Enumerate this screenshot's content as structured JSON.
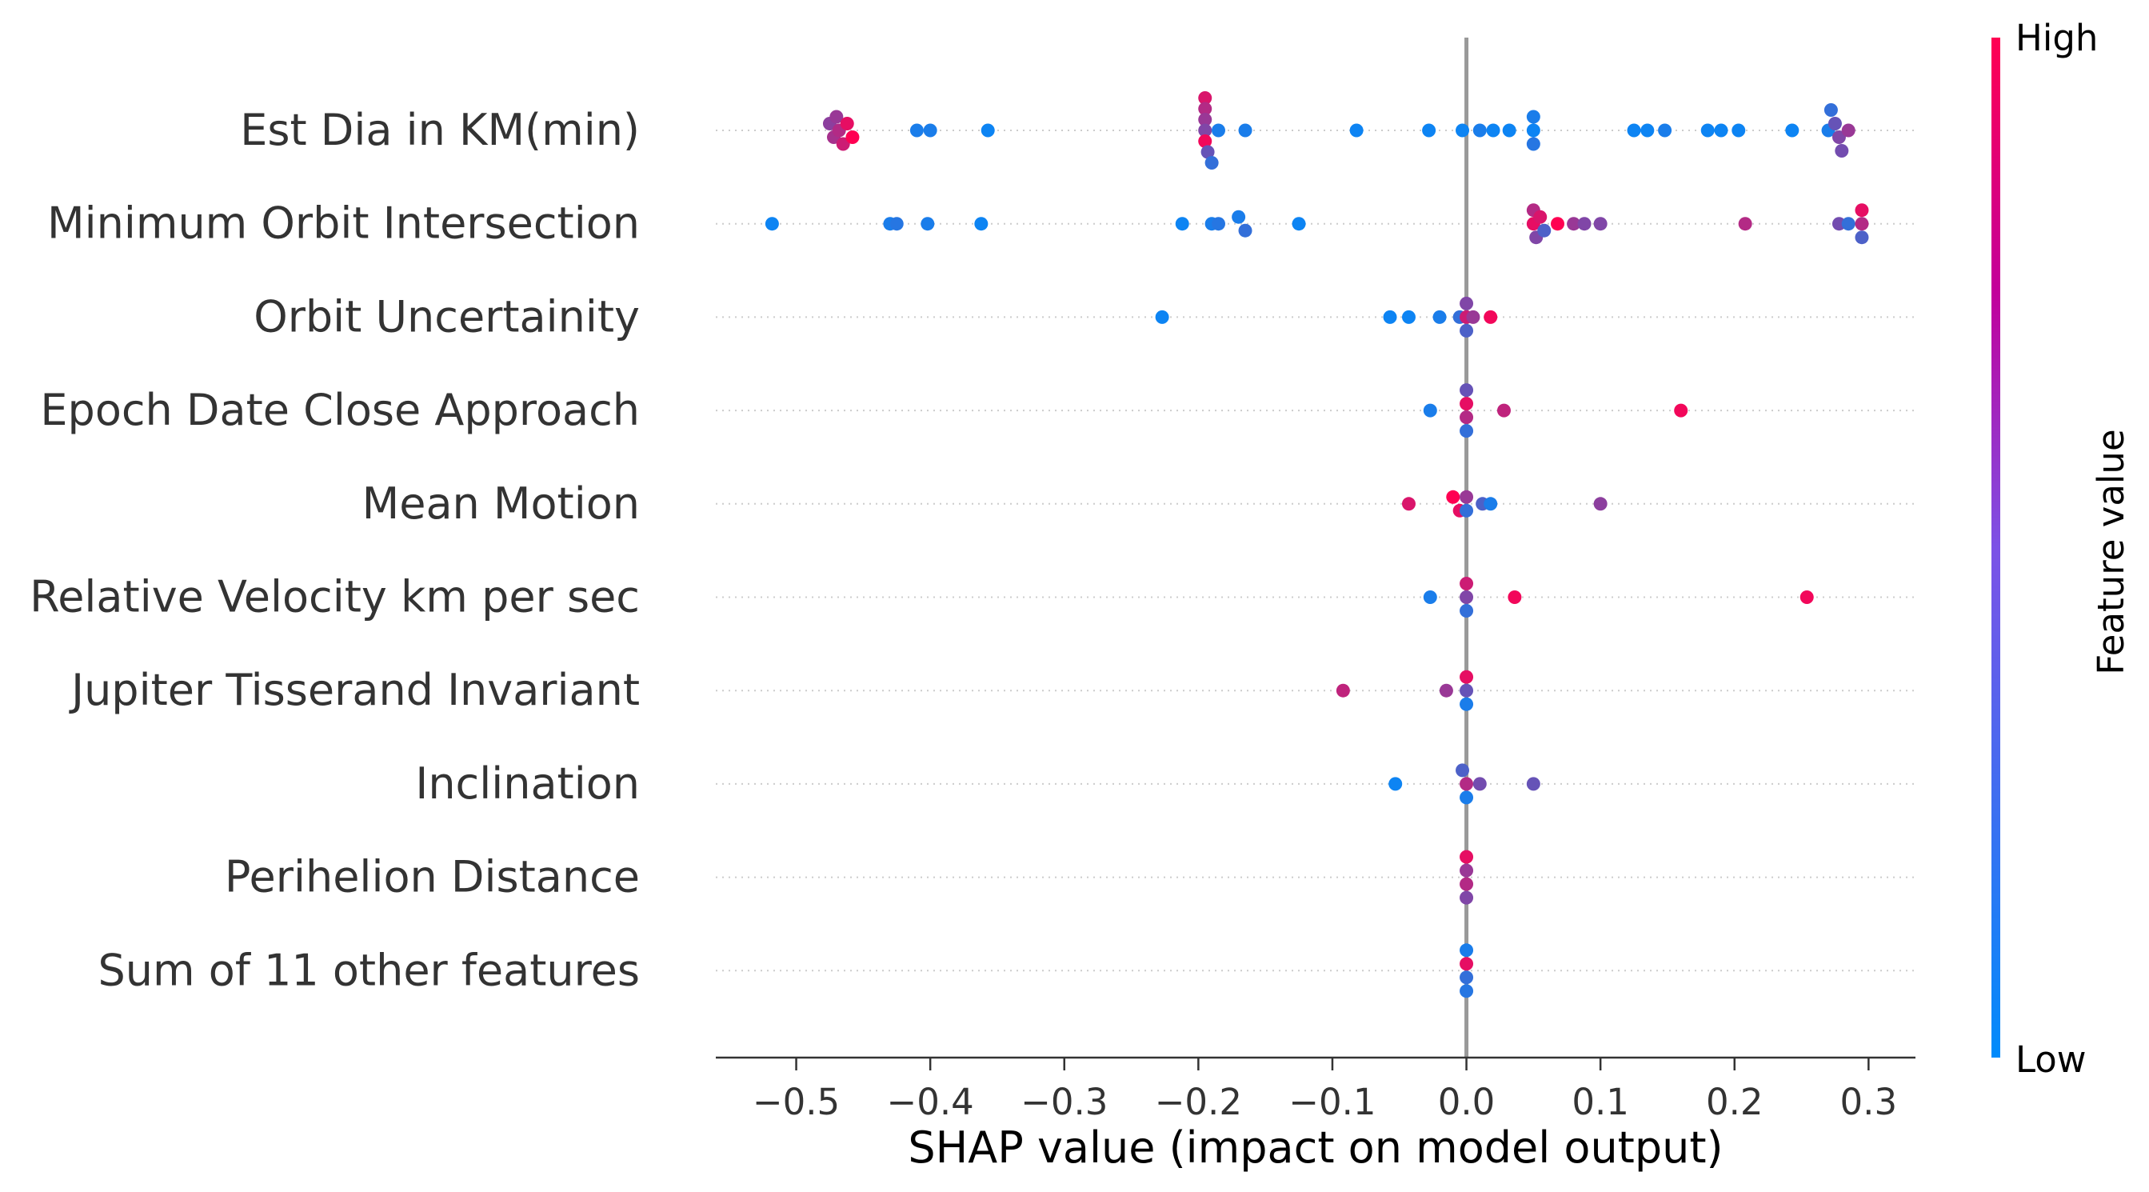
{
  "chart_data": {
    "type": "scatter",
    "subtype": "shap-beeswarm",
    "xlabel": "SHAP value (impact on model output)",
    "xlim": [
      -0.56,
      0.335
    ],
    "xticks": [
      -0.5,
      -0.4,
      -0.3,
      -0.2,
      -0.1,
      0.0,
      0.1,
      0.2,
      0.3
    ],
    "xtick_labels": [
      "−0.5",
      "−0.4",
      "−0.3",
      "−0.2",
      "−0.1",
      "0.0",
      "0.1",
      "0.2",
      "0.3"
    ],
    "zero_line": true,
    "grid": "dotted row guides",
    "colorbar": {
      "title": "Feature value",
      "high_label": "High",
      "low_label": "Low",
      "low_color": "#008bfb",
      "high_color": "#ff0052"
    },
    "features": [
      "Est Dia in KM(min)",
      "Minimum Orbit Intersection",
      "Orbit Uncertainity",
      "Epoch Date Close Approach",
      "Mean Motion",
      "Relative Velocity km per sec",
      "Jupiter Tisserand Invariant",
      "Inclination",
      "Perihelion Distance",
      "Sum of 11 other features"
    ],
    "points": [
      [
        [
          -0.475,
          0.55
        ],
        [
          -0.472,
          0.65
        ],
        [
          -0.47,
          0.6
        ],
        [
          -0.468,
          0.7
        ],
        [
          -0.465,
          0.8
        ],
        [
          -0.462,
          0.9
        ],
        [
          -0.458,
          1.0
        ],
        [
          -0.41,
          0.1
        ],
        [
          -0.4,
          0.1
        ],
        [
          -0.357,
          0.05
        ],
        [
          -0.195,
          0.85
        ],
        [
          -0.195,
          0.7
        ],
        [
          -0.195,
          0.6
        ],
        [
          -0.195,
          0.5
        ],
        [
          -0.195,
          0.95
        ],
        [
          -0.193,
          0.4
        ],
        [
          -0.19,
          0.2
        ],
        [
          -0.185,
          0.1
        ],
        [
          -0.165,
          0.1
        ],
        [
          -0.082,
          0.05
        ],
        [
          -0.028,
          0.05
        ],
        [
          -0.003,
          0.05
        ],
        [
          0.01,
          0.1
        ],
        [
          0.02,
          0.05
        ],
        [
          0.032,
          0.05
        ],
        [
          0.05,
          0.1
        ],
        [
          0.05,
          0.05
        ],
        [
          0.05,
          0.15
        ],
        [
          0.125,
          0.05
        ],
        [
          0.135,
          0.05
        ],
        [
          0.148,
          0.1
        ],
        [
          0.18,
          0.05
        ],
        [
          0.19,
          0.05
        ],
        [
          0.203,
          0.05
        ],
        [
          0.243,
          0.05
        ],
        [
          0.27,
          0.1
        ],
        [
          0.272,
          0.2
        ],
        [
          0.275,
          0.4
        ],
        [
          0.278,
          0.5
        ],
        [
          0.28,
          0.45
        ],
        [
          0.285,
          0.6
        ]
      ],
      [
        [
          -0.518,
          0.05
        ],
        [
          -0.43,
          0.1
        ],
        [
          -0.425,
          0.15
        ],
        [
          -0.402,
          0.1
        ],
        [
          -0.362,
          0.05
        ],
        [
          -0.212,
          0.05
        ],
        [
          -0.19,
          0.1
        ],
        [
          -0.185,
          0.15
        ],
        [
          -0.17,
          0.1
        ],
        [
          -0.165,
          0.2
        ],
        [
          -0.125,
          0.05
        ],
        [
          0.05,
          0.7
        ],
        [
          0.05,
          0.9
        ],
        [
          0.052,
          0.5
        ],
        [
          0.055,
          0.85
        ],
        [
          0.058,
          0.3
        ],
        [
          0.068,
          1.0
        ],
        [
          0.08,
          0.6
        ],
        [
          0.088,
          0.5
        ],
        [
          0.1,
          0.5
        ],
        [
          0.208,
          0.7
        ],
        [
          0.278,
          0.45
        ],
        [
          0.285,
          0.2
        ],
        [
          0.295,
          0.9
        ],
        [
          0.295,
          0.7
        ],
        [
          0.295,
          0.3
        ]
      ],
      [
        [
          -0.227,
          0.05
        ],
        [
          -0.057,
          0.05
        ],
        [
          -0.043,
          0.05
        ],
        [
          -0.02,
          0.1
        ],
        [
          -0.005,
          0.2
        ],
        [
          0.0,
          0.5
        ],
        [
          0.0,
          0.8
        ],
        [
          0.0,
          0.3
        ],
        [
          0.005,
          0.6
        ],
        [
          0.018,
          0.95
        ]
      ],
      [
        [
          -0.027,
          0.1
        ],
        [
          0.0,
          0.4
        ],
        [
          0.0,
          0.9
        ],
        [
          0.0,
          0.7
        ],
        [
          0.0,
          0.2
        ],
        [
          0.028,
          0.75
        ],
        [
          0.16,
          0.95
        ]
      ],
      [
        [
          -0.043,
          0.85
        ],
        [
          -0.01,
          1.0
        ],
        [
          -0.005,
          0.9
        ],
        [
          0.0,
          0.6
        ],
        [
          0.0,
          0.2
        ],
        [
          0.012,
          0.3
        ],
        [
          0.018,
          0.1
        ],
        [
          0.1,
          0.55
        ]
      ],
      [
        [
          -0.027,
          0.1
        ],
        [
          0.0,
          0.8
        ],
        [
          0.0,
          0.5
        ],
        [
          0.0,
          0.2
        ],
        [
          0.036,
          0.95
        ],
        [
          0.254,
          0.95
        ]
      ],
      [
        [
          -0.092,
          0.75
        ],
        [
          -0.015,
          0.6
        ],
        [
          0.0,
          0.9
        ],
        [
          0.0,
          0.4
        ],
        [
          0.0,
          0.1
        ]
      ],
      [
        [
          -0.053,
          0.05
        ],
        [
          -0.003,
          0.3
        ],
        [
          0.0,
          0.7
        ],
        [
          0.0,
          0.1
        ],
        [
          0.01,
          0.45
        ],
        [
          0.05,
          0.4
        ]
      ],
      [
        [
          0.0,
          0.9
        ],
        [
          0.0,
          0.6
        ],
        [
          0.0,
          0.7
        ],
        [
          0.0,
          0.5
        ]
      ],
      [
        [
          0.0,
          0.1
        ],
        [
          0.0,
          0.9
        ],
        [
          0.0,
          0.2
        ],
        [
          0.0,
          0.15
        ]
      ]
    ]
  }
}
